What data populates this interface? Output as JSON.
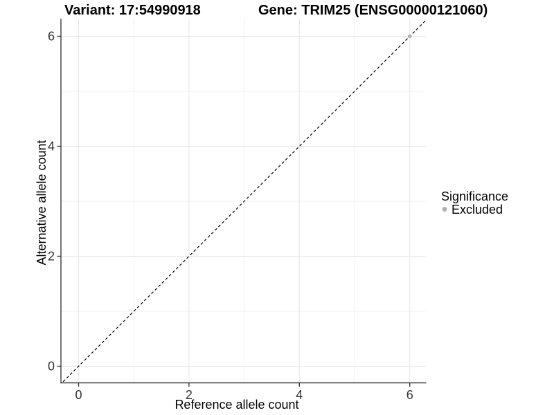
{
  "titles": {
    "variant": "Variant: 17:54990918",
    "gene": "Gene: TRIM25 (ENSG00000121060)"
  },
  "chart_data": {
    "type": "scatter",
    "xlabel": "Reference allele count",
    "ylabel": "Alternative allele count",
    "x_ticks": [
      0,
      2,
      4,
      6
    ],
    "y_ticks": [
      0,
      2,
      4,
      6
    ],
    "x_minor_ticks": [
      1,
      3,
      5
    ],
    "y_minor_ticks": [
      1,
      3,
      5
    ],
    "xlim": [
      -0.32,
      6.32
    ],
    "ylim": [
      -0.32,
      6.32
    ],
    "grid": true,
    "identity_line": {
      "equation": "y = x",
      "style": "dashed",
      "color": "#000000"
    },
    "series": [
      {
        "name": "Excluded",
        "color": "#B0B0B0",
        "points": [
          {
            "x": 6,
            "y": 6
          }
        ]
      }
    ],
    "legend": {
      "title": "Significance",
      "position": "right",
      "items": [
        {
          "label": "Excluded",
          "color": "#B0B0B0"
        }
      ]
    }
  },
  "colors": {
    "background": "#FFFFFF",
    "grid_major": "#E6E6E6",
    "grid_minor": "#F2F2F2",
    "axis_line": "#3C3C3C",
    "tick_mark": "#3C3C3C",
    "tick_text": "#333333",
    "title_text": "#000000"
  }
}
